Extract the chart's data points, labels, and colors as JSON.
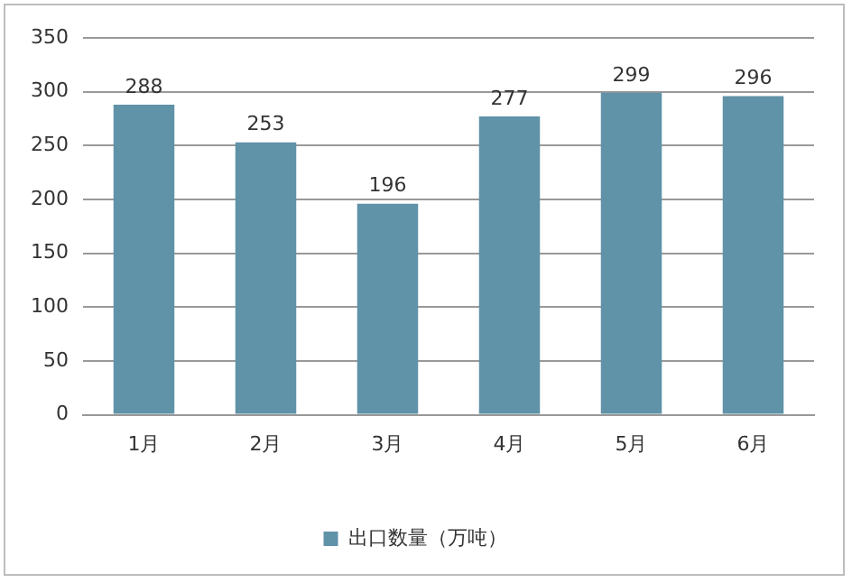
{
  "chart_data": {
    "type": "bar",
    "categories": [
      "1月",
      "2月",
      "3月",
      "4月",
      "5月",
      "6月"
    ],
    "series": [
      {
        "name": "出口数量（万吨）",
        "color": "#6092a8",
        "values": [
          288,
          253,
          196,
          277,
          299,
          296
        ]
      }
    ],
    "ylim": [
      0,
      350
    ],
    "yticks": [
      0,
      50,
      100,
      150,
      200,
      250,
      300,
      350
    ],
    "grid": "y",
    "legend": "bottom",
    "data_labels": true
  }
}
